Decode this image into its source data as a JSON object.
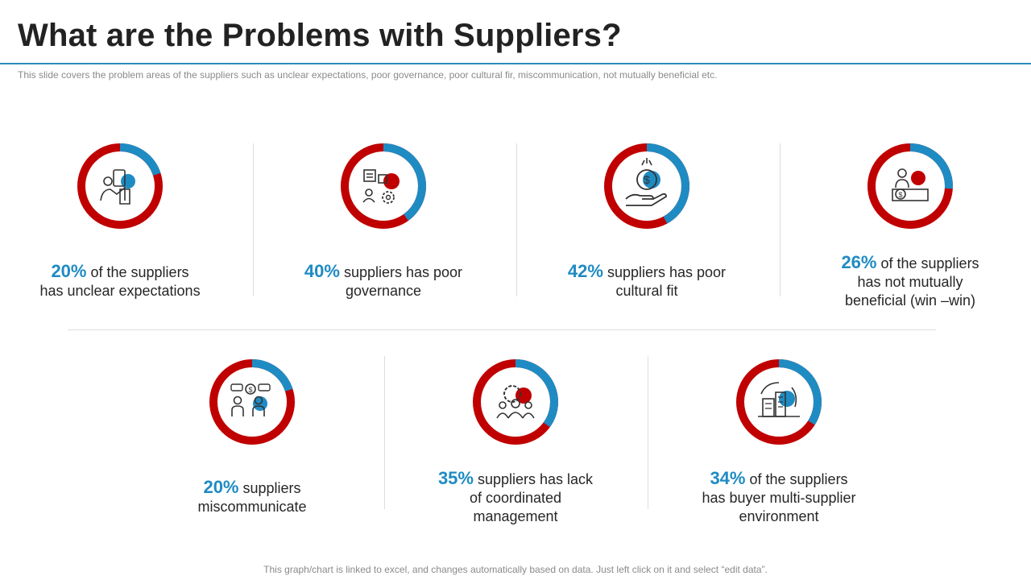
{
  "header": {
    "title": "What are the Problems with Suppliers?",
    "subtitle": "This slide covers the problem areas of the suppliers such as unclear expectations, poor governance,  poor cultural fir, miscommunication,  not mutually beneficial etc."
  },
  "footer": {
    "note": "This graph/chart is linked to excel, and changes automatically based on data. Just left click on it and select “edit data”."
  },
  "colors": {
    "primary": "#c00000",
    "accent": "#1f8bc3",
    "icon": "#333333"
  },
  "chart_data": {
    "type": "pie",
    "items": [
      {
        "value": 20,
        "pct_label": "20%",
        "line1": " of the suppliers",
        "line2": "has unclear expectations",
        "line3": "",
        "icon": "handshake-icon"
      },
      {
        "value": 40,
        "pct_label": "40%",
        "line1": " suppliers has poor",
        "line2": "governance",
        "line3": "",
        "icon": "governance-icon"
      },
      {
        "value": 42,
        "pct_label": "42%",
        "line1": " suppliers has poor",
        "line2": "cultural fit",
        "line3": "",
        "icon": "money-hand-icon"
      },
      {
        "value": 26,
        "pct_label": "26%",
        "line1": " of the suppliers",
        "line2": "has not mutually",
        "line3": "beneficial (win –win)",
        "icon": "negotiation-icon"
      },
      {
        "value": 20,
        "pct_label": "20%",
        "line1": " suppliers",
        "line2": "miscommunicate",
        "line3": "",
        "icon": "meeting-icon"
      },
      {
        "value": 35,
        "pct_label": "35%",
        "line1": " suppliers has lack",
        "line2": "of coordinated",
        "line3": "management",
        "icon": "team-gear-icon"
      },
      {
        "value": 34,
        "pct_label": "34%",
        "line1": " of the suppliers",
        "line2": "has buyer multi-supplier",
        "line3": "environment",
        "icon": "buildings-icon"
      }
    ]
  }
}
